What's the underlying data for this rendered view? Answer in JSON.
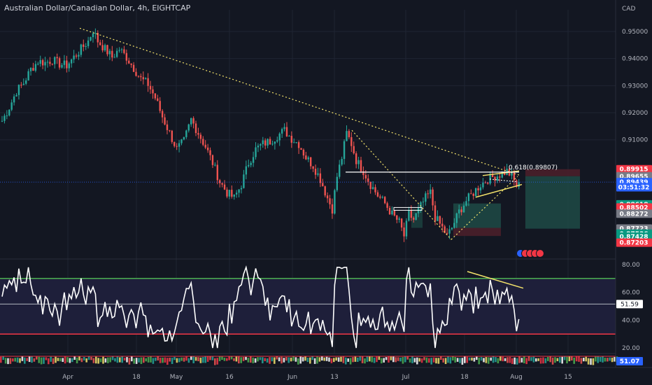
{
  "title": "Australian Dollar/Canadian Dollar, 4h, EIGHTCAP",
  "currency": "CAD",
  "chart_data": [
    {
      "type": "candlestick",
      "symbol": "AUDCAD",
      "interval": "4h",
      "ylim": [
        0.866,
        0.958
      ],
      "y_ticks": [
        "0.95000",
        "0.94000",
        "0.93000",
        "0.92000",
        "0.91000"
      ],
      "x_ticks": [
        "Apr",
        "18",
        "May",
        "16",
        "Jun",
        "13",
        "Jul",
        "18",
        "Aug",
        "15"
      ],
      "price_path": [
        [
          0,
          0.917
        ],
        [
          3,
          0.922
        ],
        [
          6,
          0.928
        ],
        [
          9,
          0.931
        ],
        [
          12,
          0.936
        ],
        [
          15,
          0.939
        ],
        [
          18,
          0.9385
        ],
        [
          21,
          0.9395
        ],
        [
          24,
          0.938
        ],
        [
          27,
          0.9375
        ],
        [
          30,
          0.9405
        ],
        [
          33,
          0.9435
        ],
        [
          36,
          0.9465
        ],
        [
          38,
          0.9505
        ],
        [
          40,
          0.9465
        ],
        [
          43,
          0.9435
        ],
        [
          46,
          0.9405
        ],
        [
          49,
          0.9435
        ],
        [
          52,
          0.9405
        ],
        [
          55,
          0.9365
        ],
        [
          58,
          0.9325
        ],
        [
          61,
          0.9305
        ],
        [
          64,
          0.9255
        ],
        [
          67,
          0.9185
        ],
        [
          70,
          0.9125
        ],
        [
          73,
          0.9065
        ],
        [
          76,
          0.9095
        ],
        [
          79,
          0.9175
        ],
        [
          82,
          0.9125
        ],
        [
          85,
          0.9075
        ],
        [
          88,
          0.9015
        ],
        [
          91,
          0.8945
        ],
        [
          94,
          0.8905
        ],
        [
          97,
          0.8885
        ],
        [
          100,
          0.8935
        ],
        [
          103,
          0.9015
        ],
        [
          106,
          0.9065
        ],
        [
          109,
          0.9085
        ],
        [
          112,
          0.9095
        ],
        [
          115,
          0.9115
        ],
        [
          118,
          0.9135
        ],
        [
          121,
          0.9105
        ],
        [
          124,
          0.9085
        ],
        [
          127,
          0.9035
        ],
        [
          130,
          0.9005
        ],
        [
          133,
          0.8955
        ],
        [
          136,
          0.8885
        ],
        [
          138,
          0.8845
        ],
        [
          140,
          0.8965
        ],
        [
          142,
          0.9035
        ],
        [
          144,
          0.9125
        ],
        [
          146,
          0.9085
        ],
        [
          148,
          0.9025
        ],
        [
          151,
          0.8985
        ],
        [
          154,
          0.8935
        ],
        [
          157,
          0.8895
        ],
        [
          160,
          0.8865
        ],
        [
          163,
          0.8825
        ],
        [
          166,
          0.8795
        ],
        [
          168,
          0.8745
        ],
        [
          170,
          0.8825
        ],
        [
          172,
          0.8805
        ],
        [
          175,
          0.8855
        ],
        [
          177,
          0.8885
        ],
        [
          179,
          0.8905
        ],
        [
          181,
          0.8815
        ],
        [
          184,
          0.8775
        ],
        [
          186,
          0.8745
        ],
        [
          188,
          0.8775
        ],
        [
          191,
          0.8835
        ],
        [
          194,
          0.8875
        ],
        [
          197,
          0.8905
        ],
        [
          200,
          0.8935
        ],
        [
          203,
          0.8955
        ],
        [
          206,
          0.8965
        ],
        [
          209,
          0.8975
        ],
        [
          211,
          0.8985
        ],
        [
          213,
          0.8965
        ],
        [
          215,
          0.893
        ],
        [
          216,
          0.8944
        ]
      ],
      "annotations": {
        "fib_label": "0.618(0.89807)",
        "fib_price": 0.89807,
        "support_price": 0.8845
      },
      "price_labels": [
        {
          "text": "0.89915",
          "value": 0.89915,
          "color": "#f23645"
        },
        {
          "text": "0.89655",
          "value": 0.89655,
          "color": "#787b86"
        },
        {
          "text": "0.89439",
          "value": 0.89439,
          "color": "#2962ff"
        },
        {
          "text": "03:51:32",
          "value": 0.8925,
          "color": "#2962ff"
        },
        {
          "text": "0.88618",
          "value": 0.88618,
          "color": "#089981"
        },
        {
          "text": "0.88502",
          "value": 0.88502,
          "color": "#f23645"
        },
        {
          "text": "0.88272",
          "value": 0.88272,
          "color": "#787b86"
        },
        {
          "text": "0.87723",
          "value": 0.87723,
          "color": "#787b86"
        },
        {
          "text": "0.87536",
          "value": 0.87536,
          "color": "#089981"
        },
        {
          "text": "0.87428",
          "value": 0.87428,
          "color": "#089981"
        },
        {
          "text": "0.87203",
          "value": 0.87203,
          "color": "#f23645"
        }
      ]
    },
    {
      "type": "line",
      "name": "RSI",
      "ylim": [
        16,
        84
      ],
      "y_ticks": [
        "80.00",
        "60.00",
        "40.00",
        "20.00"
      ],
      "upper_band": 70,
      "lower_band": 30,
      "mid_line": 51.59,
      "last_value_label": "51.59",
      "bottom_value_label": "51.07"
    }
  ],
  "colors": {
    "background": "#131722",
    "up": "#26a69a",
    "down": "#ef5350",
    "trend": "#f4e36b",
    "rsi_upper": "#4caf50",
    "rsi_lower": "#f23645",
    "rsi_band": "#1e1f3a"
  }
}
